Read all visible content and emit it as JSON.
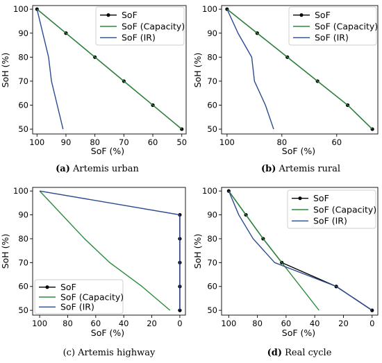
{
  "chart_data": [
    {
      "type": "line",
      "caption_letter": "(a)",
      "caption_text": " Artemis urban",
      "xlabel": "SoF (%)",
      "ylabel": "SoH (%)",
      "xlim": [
        101.5,
        48.5
      ],
      "ylim": [
        48,
        101.5
      ],
      "xticks": [
        100,
        90,
        80,
        70,
        60,
        50
      ],
      "yticks": [
        50,
        60,
        70,
        80,
        90,
        100
      ],
      "legend_position": "top-right",
      "series": [
        {
          "name": "SoF",
          "color": "#000000",
          "markers": true,
          "x": [
            100,
            90,
            80,
            70,
            60,
            50
          ],
          "y": [
            100,
            90,
            80,
            70,
            60,
            50
          ]
        },
        {
          "name": "SoF (Capacity)",
          "color": "#2a8a3a",
          "markers": false,
          "x": [
            100,
            90,
            80,
            70,
            60,
            50
          ],
          "y": [
            100,
            90,
            80,
            70,
            60,
            50
          ]
        },
        {
          "name": "SoF (IR)",
          "color": "#2b4a8f",
          "markers": false,
          "x": [
            100,
            96,
            95,
            93,
            91
          ],
          "y": [
            100,
            80,
            70,
            60,
            50
          ]
        }
      ]
    },
    {
      "type": "line",
      "caption_letter": "(b)",
      "caption_text": " Artemis rural",
      "xlabel": "SoF (%)",
      "ylabel": "SoH (%)",
      "xlim": [
        102,
        45
      ],
      "ylim": [
        48,
        101.5
      ],
      "xticks": [
        100,
        80,
        60
      ],
      "yticks": [
        50,
        60,
        70,
        80,
        90,
        100
      ],
      "legend_position": "top-right",
      "series": [
        {
          "name": "SoF",
          "color": "#000000",
          "markers": true,
          "x": [
            100,
            89,
            78,
            67,
            56,
            47
          ],
          "y": [
            100,
            90,
            80,
            70,
            60,
            50
          ]
        },
        {
          "name": "SoF (Capacity)",
          "color": "#2a8a3a",
          "markers": false,
          "x": [
            100,
            89,
            78,
            67,
            56,
            47
          ],
          "y": [
            100,
            90,
            80,
            70,
            60,
            50
          ]
        },
        {
          "name": "SoF (IR)",
          "color": "#2b4a8f",
          "markers": false,
          "x": [
            100,
            96,
            91,
            90,
            86,
            83
          ],
          "y": [
            100,
            90,
            80,
            70,
            60,
            50
          ]
        }
      ]
    },
    {
      "type": "line",
      "caption_letter": "",
      "caption_text": "(c) Artemis highway",
      "xlabel": "SoF (%)",
      "ylabel": "SoH (%)",
      "xlim": [
        105,
        -4
      ],
      "ylim": [
        48,
        101.5
      ],
      "xticks": [
        100,
        80,
        60,
        40,
        20,
        0
      ],
      "yticks": [
        50,
        60,
        70,
        80,
        90,
        100
      ],
      "legend_position": "bottom-left",
      "series": [
        {
          "name": "SoF",
          "color": "#000000",
          "markers": true,
          "x": [
            0,
            0,
            0,
            0,
            0
          ],
          "y": [
            90,
            80,
            70,
            60,
            50
          ]
        },
        {
          "name": "SoF (Capacity)",
          "color": "#2a8a3a",
          "markers": false,
          "x": [
            100,
            68,
            50,
            27,
            7
          ],
          "y": [
            100,
            80,
            70,
            60,
            50
          ]
        },
        {
          "name": "SoF (IR)",
          "color": "#2b4a8f",
          "markers": false,
          "x": [
            100,
            0,
            0,
            0,
            0,
            0
          ],
          "y": [
            100,
            90,
            80,
            70,
            60,
            50
          ]
        }
      ]
    },
    {
      "type": "line",
      "caption_letter": "(d)",
      "caption_text": " Real cycle",
      "xlabel": "SoF (%)",
      "ylabel": "SoH (%)",
      "xlim": [
        105,
        -4
      ],
      "ylim": [
        48,
        101.5
      ],
      "xticks": [
        100,
        80,
        60,
        40,
        20,
        0
      ],
      "yticks": [
        50,
        60,
        70,
        80,
        90,
        100
      ],
      "legend_position": "top-right",
      "series": [
        {
          "name": "SoF",
          "color": "#000000",
          "markers": true,
          "x": [
            100,
            88,
            76,
            63,
            25,
            0
          ],
          "y": [
            100,
            90,
            80,
            70,
            60,
            50
          ]
        },
        {
          "name": "SoF (Capacity)",
          "color": "#2a8a3a",
          "markers": false,
          "x": [
            100,
            88,
            76,
            63,
            37
          ],
          "y": [
            100,
            90,
            80,
            70,
            50
          ]
        },
        {
          "name": "SoF (IR)",
          "color": "#2b4a8f",
          "markers": false,
          "x": [
            100,
            93,
            83,
            68,
            25,
            0
          ],
          "y": [
            100,
            90,
            80,
            70,
            60,
            50
          ]
        }
      ]
    }
  ]
}
